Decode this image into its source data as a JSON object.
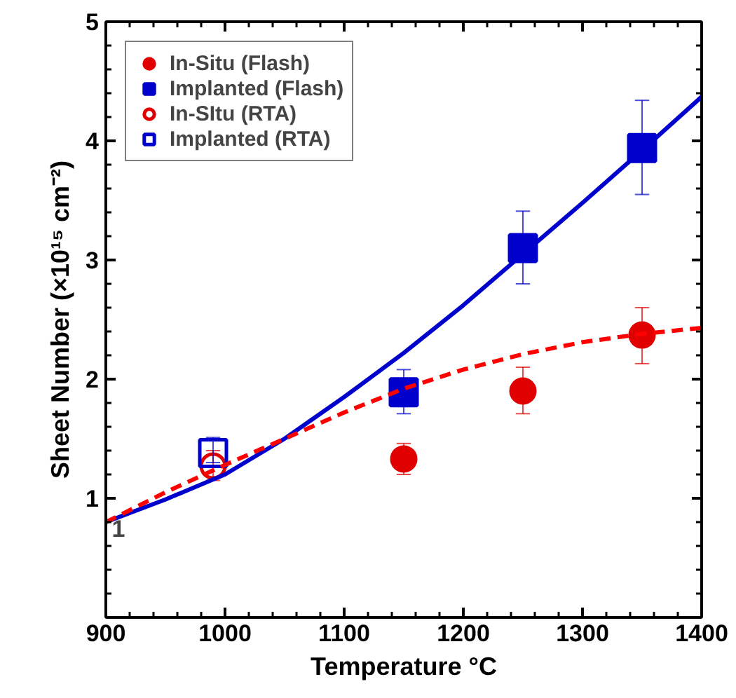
{
  "chart_data": {
    "type": "scatter",
    "xlabel": "Temperature °C",
    "ylabel": "Sheet Number (×10¹⁵ cm⁻²)",
    "xlim": [
      900,
      1400
    ],
    "xticks": [
      900,
      1000,
      1100,
      1200,
      1300,
      1400
    ],
    "ylim": [
      0,
      5
    ],
    "yticks": [
      1,
      2,
      3,
      4,
      5
    ],
    "grid": false,
    "legend": "top left",
    "annotations": [
      {
        "text": "1",
        "x": 905,
        "y": 0.75
      }
    ],
    "series": [
      {
        "name": "In-Situ (Flash)",
        "color": "#e00000",
        "marker": "circle",
        "x": [
          1150,
          1250,
          1350
        ],
        "values": [
          1.33,
          1.9,
          2.37
        ],
        "errors": [
          [
            1.2,
            1.46
          ],
          [
            1.71,
            2.1
          ],
          [
            2.13,
            2.6
          ]
        ]
      },
      {
        "name": "Implanted (Flash)",
        "color": "#0000cc",
        "marker": "square",
        "x": [
          1150,
          1250,
          1350
        ],
        "values": [
          1.89,
          3.1,
          3.94
        ],
        "errors": [
          [
            1.71,
            2.08
          ],
          [
            2.8,
            3.41
          ],
          [
            3.55,
            4.34
          ]
        ]
      },
      {
        "name": "In-SItu (RTA)",
        "color": "#e00000",
        "marker": "circle",
        "x": [
          990
        ],
        "values": [
          1.27
        ],
        "errors": [
          [
            1.15,
            1.4
          ]
        ]
      },
      {
        "name": "Implanted (RTA)",
        "color": "#0000cc",
        "marker": "square",
        "x": [
          990
        ],
        "values": [
          1.38
        ],
        "errors": [
          [
            1.3,
            1.51
          ]
        ]
      },
      {
        "type": "line",
        "color": "#0000cc",
        "line_style": "solid",
        "x": [
          900,
          950,
          1000,
          1050,
          1100,
          1150,
          1200,
          1250,
          1300,
          1350,
          1400
        ],
        "values": [
          0.8,
          0.99,
          1.2,
          1.5,
          1.85,
          2.22,
          2.62,
          3.05,
          3.48,
          3.92,
          4.37
        ]
      },
      {
        "type": "line",
        "color": "#ff0000",
        "line_style": "dashed",
        "x": [
          900,
          950,
          1000,
          1050,
          1100,
          1150,
          1200,
          1250,
          1300,
          1350,
          1400
        ],
        "values": [
          0.8,
          1.05,
          1.28,
          1.5,
          1.72,
          1.92,
          2.08,
          2.21,
          2.31,
          2.38,
          2.43
        ]
      }
    ]
  }
}
